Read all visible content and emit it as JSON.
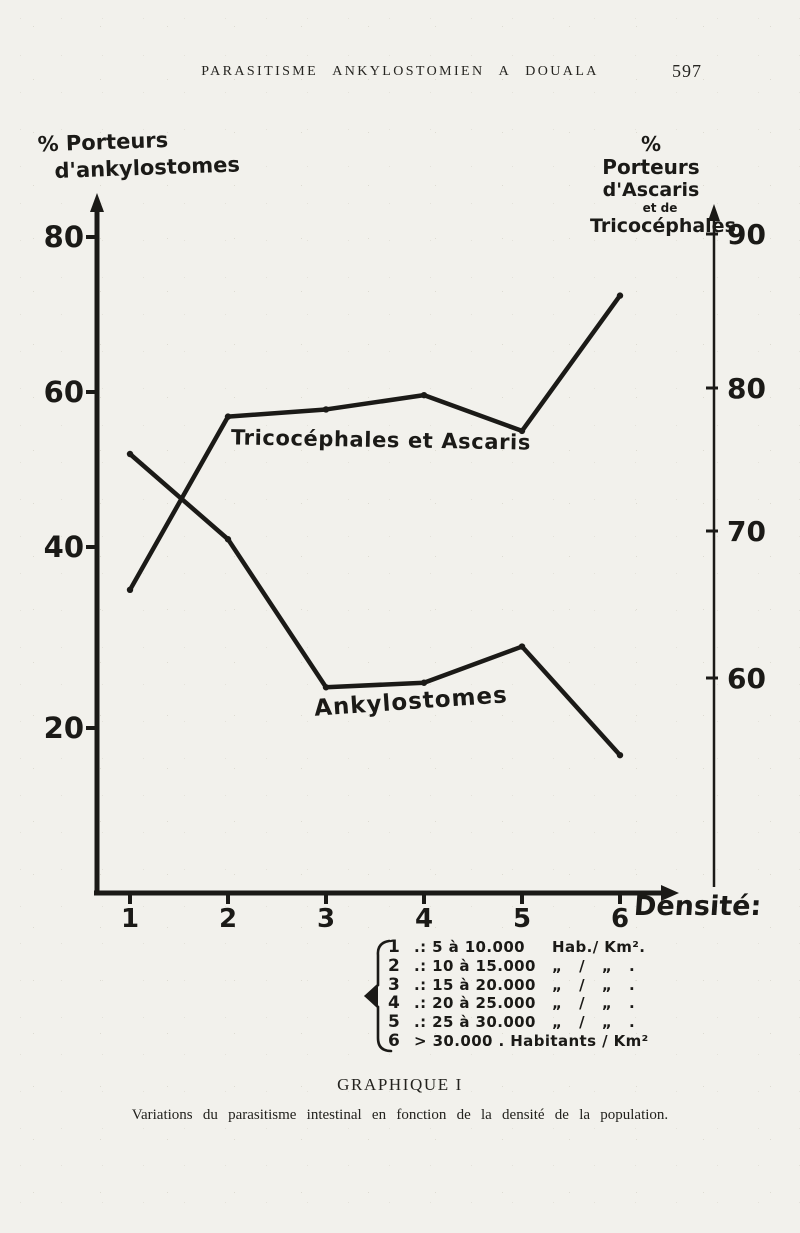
{
  "page": {
    "header": {
      "title": "PARASITISME ANKYLOSTOMIEN A DOUALA",
      "page_number": "597"
    },
    "caption": {
      "title": "GRAPHIQUE I",
      "text": "Variations du parasitisme intestinal en fonction de la densité de la population."
    }
  },
  "chart_data": {
    "type": "line",
    "title": "GRAPHIQUE I",
    "x": [
      1,
      2,
      3,
      4,
      5,
      6
    ],
    "x_tick_labels": [
      "1",
      "2",
      "3",
      "4",
      "5",
      "6"
    ],
    "x_category_label": "Densité:",
    "grid": false,
    "left_axis": {
      "label": "% Porteurs d'ankylostomes",
      "label_lines": [
        "% Porteurs",
        "d'ankylostomes"
      ],
      "ticks": [
        80,
        60,
        40,
        20
      ],
      "range": [
        10,
        85
      ]
    },
    "right_axis": {
      "label": "% Porteurs d'Ascaris et de Tricocéphales",
      "label_lines": [
        "% Porteurs",
        "d'Ascaris",
        "et de",
        "Tricocéphales"
      ],
      "ticks": [
        90,
        80,
        70,
        60
      ],
      "range": [
        52,
        95
      ]
    },
    "series": [
      {
        "name": "Tricocéphales et Ascaris",
        "axis": "right",
        "values": [
          66,
          78,
          78.5,
          79.5,
          77,
          86
        ]
      },
      {
        "name": "Ankylostomes",
        "axis": "left",
        "values": [
          52,
          41,
          24.5,
          25,
          29,
          17
        ]
      }
    ],
    "legend_position": "below-axis"
  },
  "legend": {
    "items": [
      {
        "num": "1",
        "range": ".: 5 à 10.000",
        "unit": "Hab./ Km²."
      },
      {
        "num": "2",
        "range": ".: 10 à 15.000",
        "unit": "„   /   „   ."
      },
      {
        "num": "3",
        "range": ".: 15 à 20.000",
        "unit": "„   /   „   ."
      },
      {
        "num": "4",
        "range": ".: 20 à 25.000",
        "unit": "„   /   „   ."
      },
      {
        "num": "5",
        "range": ".: 25 à 30.000",
        "unit": "„   /   „   ."
      },
      {
        "num": "6",
        "range": "> 30.000 . Habitants / Km²",
        "unit": ""
      }
    ]
  },
  "ink_color": "#1b1a17"
}
